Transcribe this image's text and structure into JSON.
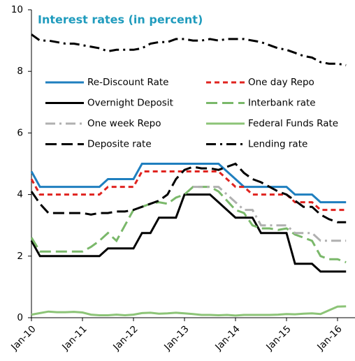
{
  "chart_data": {
    "type": "line",
    "title": "Interest rates (in percent)",
    "categories": [
      "Jan-10",
      null,
      null,
      null,
      null,
      null,
      "Jan-11",
      null,
      null,
      null,
      null,
      null,
      "Jan-12",
      null,
      null,
      null,
      null,
      null,
      "Jan-13",
      null,
      null,
      null,
      null,
      null,
      "Jan-14",
      null,
      null,
      null,
      null,
      null,
      "Jan-15",
      null,
      null,
      null,
      null,
      null,
      "Jan-16",
      null
    ],
    "ylim": [
      0,
      10
    ],
    "yticks": [
      0,
      2,
      4,
      6,
      8,
      10
    ],
    "series": [
      {
        "name": "Re-Discount Rate",
        "color": "#1f7fbf",
        "style": "solid",
        "values": [
          4.75,
          4.25,
          4.25,
          4.25,
          4.25,
          4.25,
          4.25,
          4.25,
          4.25,
          4.5,
          4.5,
          4.5,
          4.5,
          5.0,
          5.0,
          5.0,
          5.0,
          5.0,
          5.0,
          5.0,
          5.0,
          5.0,
          5.0,
          4.75,
          4.5,
          4.25,
          4.25,
          4.25,
          4.25,
          4.25,
          4.25,
          4.0,
          4.0,
          4.0,
          3.75,
          3.75,
          3.75,
          3.75
        ]
      },
      {
        "name": "One day Repo",
        "color": "#e0231f",
        "style": "dashed",
        "values": [
          4.5,
          4.0,
          4.0,
          4.0,
          4.0,
          4.0,
          4.0,
          4.0,
          4.0,
          4.25,
          4.25,
          4.25,
          4.25,
          4.75,
          4.75,
          4.75,
          4.75,
          4.75,
          4.75,
          4.75,
          4.75,
          4.75,
          4.75,
          4.5,
          4.25,
          4.25,
          4.0,
          4.0,
          4.0,
          4.0,
          4.0,
          3.75,
          3.75,
          3.75,
          3.5,
          3.5,
          3.5,
          3.5
        ]
      },
      {
        "name": "Overnight Deposit",
        "color": "#000000",
        "style": "solid",
        "values": [
          2.5,
          2.0,
          2.0,
          2.0,
          2.0,
          2.0,
          2.0,
          2.0,
          2.0,
          2.25,
          2.25,
          2.25,
          2.25,
          2.75,
          2.75,
          3.25,
          3.25,
          3.25,
          4.0,
          4.0,
          4.0,
          4.0,
          3.75,
          3.5,
          3.25,
          3.25,
          3.25,
          2.75,
          2.75,
          2.75,
          2.75,
          1.75,
          1.75,
          1.75,
          1.5,
          1.5,
          1.5,
          1.5
        ]
      },
      {
        "name": "Interbank rate",
        "color": "#7ab86a",
        "style": "longdash",
        "values": [
          2.6,
          2.15,
          2.15,
          2.15,
          2.15,
          2.15,
          2.15,
          2.3,
          2.5,
          2.75,
          2.5,
          3.0,
          3.5,
          3.6,
          3.7,
          3.75,
          3.7,
          3.9,
          4.0,
          4.25,
          4.25,
          4.25,
          4.1,
          3.8,
          3.5,
          3.4,
          3.0,
          2.9,
          2.9,
          2.85,
          2.9,
          2.7,
          2.6,
          2.5,
          2.0,
          1.9,
          1.9,
          1.8
        ]
      },
      {
        "name": "One week Repo",
        "color": "#b0b0b0",
        "style": "dashdot",
        "values": [
          null,
          null,
          null,
          null,
          null,
          null,
          null,
          null,
          null,
          null,
          null,
          null,
          null,
          null,
          null,
          null,
          null,
          null,
          null,
          4.25,
          4.25,
          4.25,
          4.25,
          4.0,
          3.75,
          3.5,
          3.5,
          3.0,
          3.0,
          3.0,
          3.0,
          2.75,
          2.75,
          2.75,
          2.5,
          2.5,
          2.5,
          2.5
        ]
      },
      {
        "name": "Federal Funds Rate",
        "color": "#8cc477",
        "style": "solid",
        "values": [
          0.1,
          0.15,
          0.2,
          0.18,
          0.18,
          0.19,
          0.17,
          0.1,
          0.08,
          0.08,
          0.1,
          0.08,
          0.1,
          0.15,
          0.16,
          0.13,
          0.14,
          0.16,
          0.14,
          0.12,
          0.09,
          0.09,
          0.08,
          0.09,
          0.07,
          0.09,
          0.09,
          0.09,
          0.09,
          0.1,
          0.12,
          0.11,
          0.13,
          0.14,
          0.12,
          0.24,
          0.36,
          0.37
        ]
      },
      {
        "name": "Deposite rate",
        "color": "#000000",
        "style": "longdash",
        "values": [
          4.1,
          3.7,
          3.4,
          3.4,
          3.4,
          3.4,
          3.4,
          3.35,
          3.4,
          3.4,
          3.45,
          3.45,
          3.5,
          3.6,
          3.7,
          3.8,
          4.0,
          4.5,
          4.8,
          4.9,
          4.85,
          4.85,
          4.8,
          4.9,
          5.0,
          4.7,
          4.5,
          4.4,
          4.25,
          4.1,
          4.0,
          3.8,
          3.6,
          3.6,
          3.35,
          3.2,
          3.1,
          3.1
        ]
      },
      {
        "name": "Lending rate",
        "color": "#000000",
        "style": "dashdot",
        "values": [
          9.2,
          9.0,
          9.0,
          8.95,
          8.9,
          8.9,
          8.85,
          8.8,
          8.75,
          8.65,
          8.7,
          8.7,
          8.7,
          8.75,
          8.9,
          8.95,
          8.95,
          9.05,
          9.05,
          9.0,
          9.0,
          9.05,
          9.0,
          9.05,
          9.05,
          9.05,
          9.0,
          8.95,
          8.85,
          8.75,
          8.7,
          8.6,
          8.5,
          8.45,
          8.3,
          8.25,
          8.25,
          8.2
        ]
      }
    ]
  }
}
